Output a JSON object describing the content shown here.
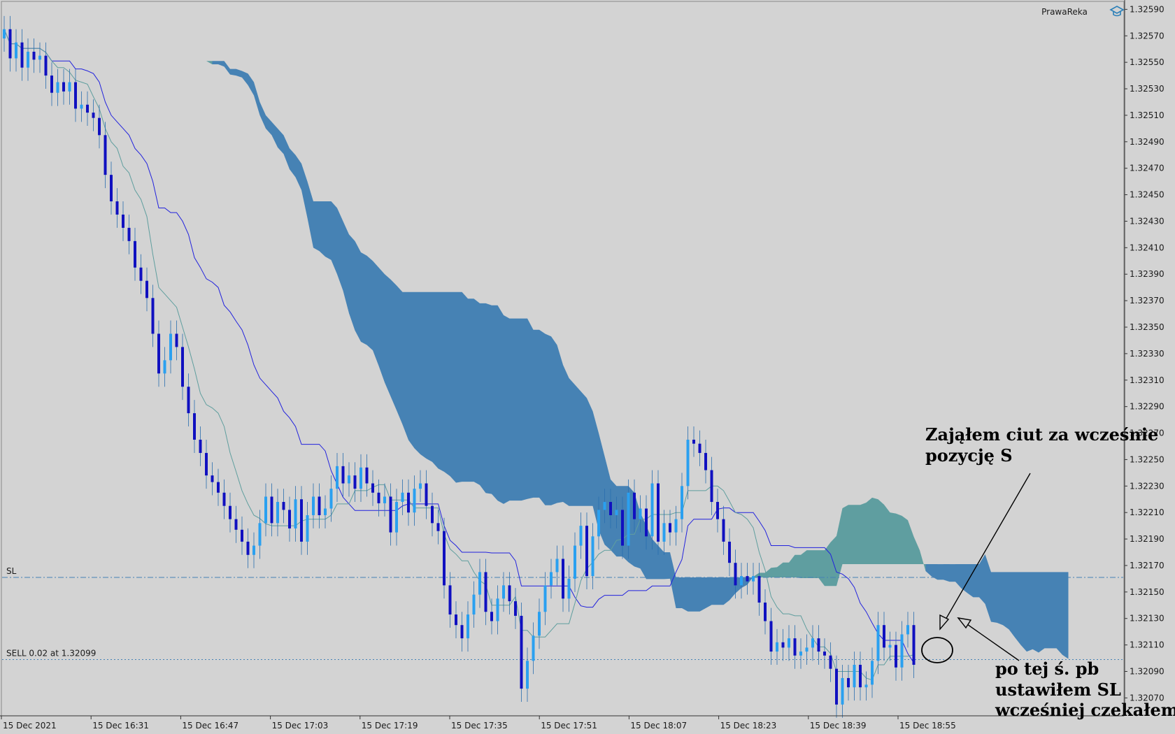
{
  "brand": {
    "name": "PrawaReka",
    "icon": "graduation-cap-icon"
  },
  "colors": {
    "background": "#d3d3d3",
    "bear_body": "#1010c0",
    "bull_body": "#2aa0f0",
    "cloud_bear": "#4682b4",
    "cloud_bull": "#5f9ea0",
    "kijun": "#2222dd",
    "tenkan": "#5f9e9e",
    "hline": "#4682b4"
  },
  "chart_data": {
    "type": "candlestick",
    "symbol_hint": "forex 1-minute",
    "ylim": [
      1.32057,
      1.32596
    ],
    "y_ticks": [
      "1.32590",
      "1.32570",
      "1.32550",
      "1.32530",
      "1.32510",
      "1.32490",
      "1.32470",
      "1.32450",
      "1.32430",
      "1.32410",
      "1.32390",
      "1.32370",
      "1.32350",
      "1.32330",
      "1.32310",
      "1.32290",
      "1.32270",
      "1.32250",
      "1.32230",
      "1.32210",
      "1.32190",
      "1.32170",
      "1.32150",
      "1.32130",
      "1.32110",
      "1.32090",
      "1.32070"
    ],
    "x_labels": [
      "15 Dec 2021",
      "15 Dec 16:31",
      "15 Dec 16:47",
      "15 Dec 17:03",
      "15 Dec 17:19",
      "15 Dec 17:35",
      "15 Dec 17:51",
      "15 Dec 18:07",
      "15 Dec 18:23",
      "15 Dec 18:39",
      "15 Dec 18:55"
    ],
    "grid": false,
    "lines": [
      {
        "label": "SL",
        "price": 1.32161,
        "style": "dash-dot"
      },
      {
        "label": "SELL 0.02 at 1.32099",
        "price": 1.32099,
        "style": "dotted"
      }
    ],
    "candle_closes": [
      1.32575,
      1.32553,
      1.32565,
      1.32546,
      1.32558,
      1.32552,
      1.32555,
      1.3254,
      1.32527,
      1.32535,
      1.32528,
      1.32535,
      1.32515,
      1.32518,
      1.32512,
      1.32508,
      1.32495,
      1.32465,
      1.32445,
      1.32435,
      1.32425,
      1.32415,
      1.32395,
      1.32385,
      1.32372,
      1.32345,
      1.32315,
      1.32325,
      1.32345,
      1.32335,
      1.32305,
      1.32285,
      1.32265,
      1.32255,
      1.32238,
      1.32233,
      1.32225,
      1.32215,
      1.32205,
      1.32197,
      1.32188,
      1.32178,
      1.32185,
      1.32202,
      1.32222,
      1.32202,
      1.32218,
      1.32212,
      1.32198,
      1.3222,
      1.32188,
      1.32208,
      1.32222,
      1.32208,
      1.32213,
      1.32228,
      1.32245,
      1.32232,
      1.32238,
      1.32228,
      1.32244,
      1.32232,
      1.32225,
      1.32217,
      1.32222,
      1.32195,
      1.32218,
      1.32225,
      1.3221,
      1.32228,
      1.32232,
      1.32215,
      1.32202,
      1.32196,
      1.32155,
      1.32133,
      1.32125,
      1.32115,
      1.32133,
      1.32148,
      1.32165,
      1.32135,
      1.32128,
      1.32145,
      1.32155,
      1.32143,
      1.32132,
      1.32077,
      1.32098,
      1.32117,
      1.32135,
      1.32155,
      1.32165,
      1.32175,
      1.32145,
      1.3216,
      1.32185,
      1.322,
      1.32162,
      1.32192,
      1.32212,
      1.32218,
      1.32208,
      1.32212,
      1.32185,
      1.32225,
      1.32205,
      1.32213,
      1.32192,
      1.32232,
      1.32188,
      1.32202,
      1.32195,
      1.32205,
      1.3223,
      1.32265,
      1.32262,
      1.32255,
      1.32242,
      1.32218,
      1.32205,
      1.32188,
      1.32172,
      1.32155,
      1.32162,
      1.32158,
      1.32162,
      1.32142,
      1.32128,
      1.32105,
      1.32112,
      1.32108,
      1.32115,
      1.32102,
      1.32105,
      1.32108,
      1.32115,
      1.32105,
      1.32102,
      1.32092,
      1.32065,
      1.32085,
      1.32078,
      1.32095,
      1.32078,
      1.3208,
      1.32098,
      1.32125,
      1.32108,
      1.3211,
      1.32093,
      1.32118,
      1.32125,
      1.32095
    ]
  },
  "annotations": [
    {
      "lines": [
        "Zająłem ciut za wcześnie",
        "pozycję S"
      ]
    },
    {
      "lines": [
        "po tej ś. pb",
        "ustawiłem SL",
        "wcześniej czekałem"
      ]
    }
  ]
}
